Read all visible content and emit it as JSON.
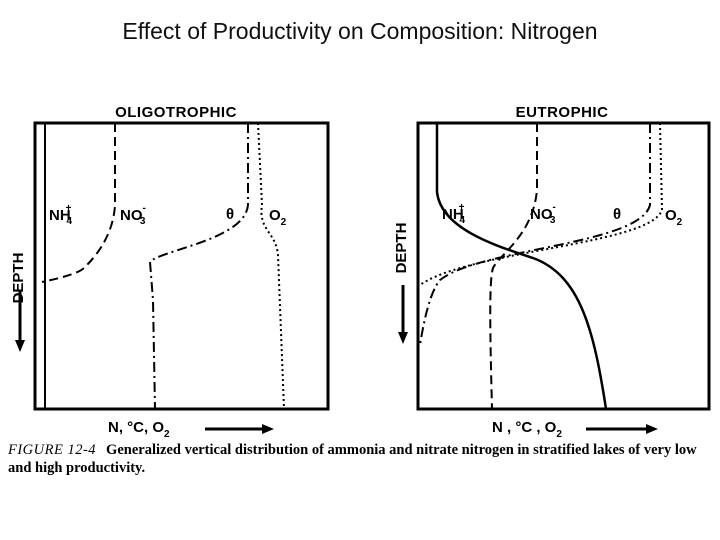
{
  "slide": {
    "title": "Effect of Productivity on Composition: Nitrogen"
  },
  "figure": {
    "panels": [
      {
        "title": "OLIGOTROPHIC",
        "labels": {
          "nh4": "NH",
          "nh4_sub": "4",
          "nh4_sup": "+",
          "no3": "NO",
          "no3_sub": "3",
          "no3_sup": "-",
          "theta": "θ",
          "o2": "O",
          "o2_sub": "2"
        },
        "x_label": "N, °C, O",
        "x_label_sub": "2",
        "y_label": "DEPTH"
      },
      {
        "title": "EUTROPHIC",
        "labels": {
          "nh4": "NH",
          "nh4_sub": "4",
          "nh4_sup": "+",
          "no3": "NO",
          "no3_sub": "3",
          "no3_sup": "-",
          "theta": "θ",
          "o2": "O",
          "o2_sub": "2"
        },
        "x_label": "N , °C , O",
        "x_label_sub": "2",
        "y_label": "DEPTH"
      }
    ],
    "caption": {
      "figure_number": "FIGURE 12-4",
      "text": "Generalized vertical distribution of ammonia and nitrate nitrogen in stratified lakes of very low and high productivity."
    }
  }
}
